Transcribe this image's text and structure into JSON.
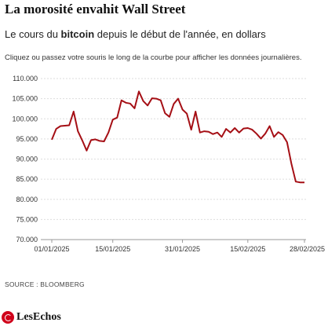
{
  "header": {
    "title": "La morosité envahit Wall Street",
    "subtitle_pre": "Le cours du ",
    "subtitle_bold": "bitcoin",
    "subtitle_post": " depuis le début de l'année, en dollars",
    "hint": "Cliquez ou passez votre souris le long de la courbe pour afficher les données journalières."
  },
  "footer": {
    "source": "SOURCE : BLOOMBERG",
    "logo_text": "LesEchos",
    "logo_icon": "les-echos-logo-icon"
  },
  "colors": {
    "line": "#a50f15",
    "grid": "#dddddd",
    "text": "#111111"
  },
  "chart_data": {
    "type": "line",
    "x_start": "01/01/2025",
    "x_end": "28/02/2025",
    "x_tick_labels": [
      "01/01/2025",
      "15/01/2025",
      "31/01/2025",
      "15/02/2025",
      "28/02/2025"
    ],
    "x_tick_days": [
      1,
      15,
      31,
      46,
      59
    ],
    "ylim": [
      70000,
      110000
    ],
    "y_ticks": [
      70000,
      75000,
      80000,
      85000,
      90000,
      95000,
      100000,
      105000,
      110000
    ],
    "y_tick_labels": [
      "70.000",
      "75.000",
      "80.000",
      "85.000",
      "90.000",
      "95.000",
      "100.000",
      "105.000",
      "110.000"
    ],
    "grid": true,
    "series": [
      {
        "values": [
          94800,
          97500,
          98200,
          98300,
          98400,
          101800,
          96900,
          94600,
          92100,
          94700,
          94900,
          94500,
          94400,
          96600,
          99800,
          100300,
          104600,
          104000,
          103800,
          102600,
          106800,
          104400,
          103300,
          105100,
          105000,
          104600,
          101400,
          100500,
          103700,
          105000,
          102300,
          101300,
          97300,
          101800,
          96600,
          96900,
          96800,
          96200,
          96600,
          95500,
          97500,
          96600,
          97700,
          96600,
          97600,
          97700,
          97300,
          96300,
          95100,
          96300,
          98200,
          95500,
          96700,
          96000,
          94200,
          88900,
          84400,
          84200,
          84200
        ]
      }
    ]
  }
}
